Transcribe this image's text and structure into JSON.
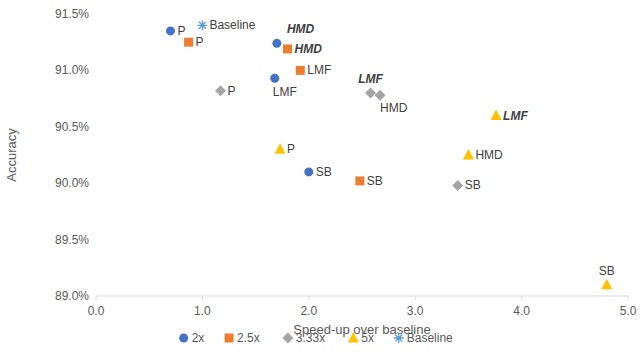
{
  "chart_data": {
    "type": "scatter",
    "x_label": "Speed-up over baseline",
    "y_label": "Accuracy",
    "xlim": [
      0,
      5
    ],
    "ylim": [
      89.0,
      91.5
    ],
    "xticks": [
      {
        "value": 0,
        "label": "0.0"
      },
      {
        "value": 1,
        "label": "1.0"
      },
      {
        "value": 2,
        "label": "2.0"
      },
      {
        "value": 3,
        "label": "3.0"
      },
      {
        "value": 4,
        "label": "4.0"
      },
      {
        "value": 5,
        "label": "5.0"
      }
    ],
    "yticks": [
      {
        "value": 89.0,
        "label": "89.0%"
      },
      {
        "value": 89.5,
        "label": "89.5%"
      },
      {
        "value": 90.0,
        "label": "90.0%"
      },
      {
        "value": 90.5,
        "label": "90.5%"
      },
      {
        "value": 91.0,
        "label": "91.0%"
      },
      {
        "value": 91.5,
        "label": "91.5%"
      }
    ],
    "grid": false,
    "legend": "bottom",
    "series": [
      {
        "name": "2x",
        "color": "#4472c4",
        "marker": "circle",
        "x": [
          0.7,
          1.7,
          1.68,
          2.0
        ],
        "values": [
          91.35,
          91.24,
          90.93,
          90.1
        ],
        "labels": [
          "P",
          "HMD",
          "LMF",
          "SB"
        ]
      },
      {
        "name": "2.5x",
        "color": "#ed7d31",
        "marker": "square",
        "x": [
          0.87,
          1.8,
          1.92,
          2.48
        ],
        "values": [
          91.25,
          91.19,
          91.0,
          90.02
        ],
        "labels": [
          "P",
          "HMD",
          "LMF",
          "SB"
        ]
      },
      {
        "name": "3.33x",
        "color": "#a5a5a5",
        "marker": "diamond",
        "x": [
          1.17,
          2.58,
          2.67,
          3.4
        ],
        "values": [
          90.82,
          90.8,
          90.78,
          89.98
        ],
        "labels": [
          "P",
          "LMF",
          "HMD",
          "SB"
        ]
      },
      {
        "name": "5x",
        "color": "#ffc000",
        "marker": "triangle",
        "x": [
          1.73,
          3.76,
          3.5,
          4.8
        ],
        "values": [
          90.3,
          90.6,
          90.25,
          89.1
        ],
        "labels": [
          "P",
          "LMF",
          "HMD",
          "SB"
        ]
      },
      {
        "name": "Baseline",
        "color": "#5b9bd5",
        "marker": "asterisk",
        "x": [
          1.0
        ],
        "values": [
          91.4
        ],
        "labels": [
          "Baseline"
        ]
      }
    ]
  }
}
